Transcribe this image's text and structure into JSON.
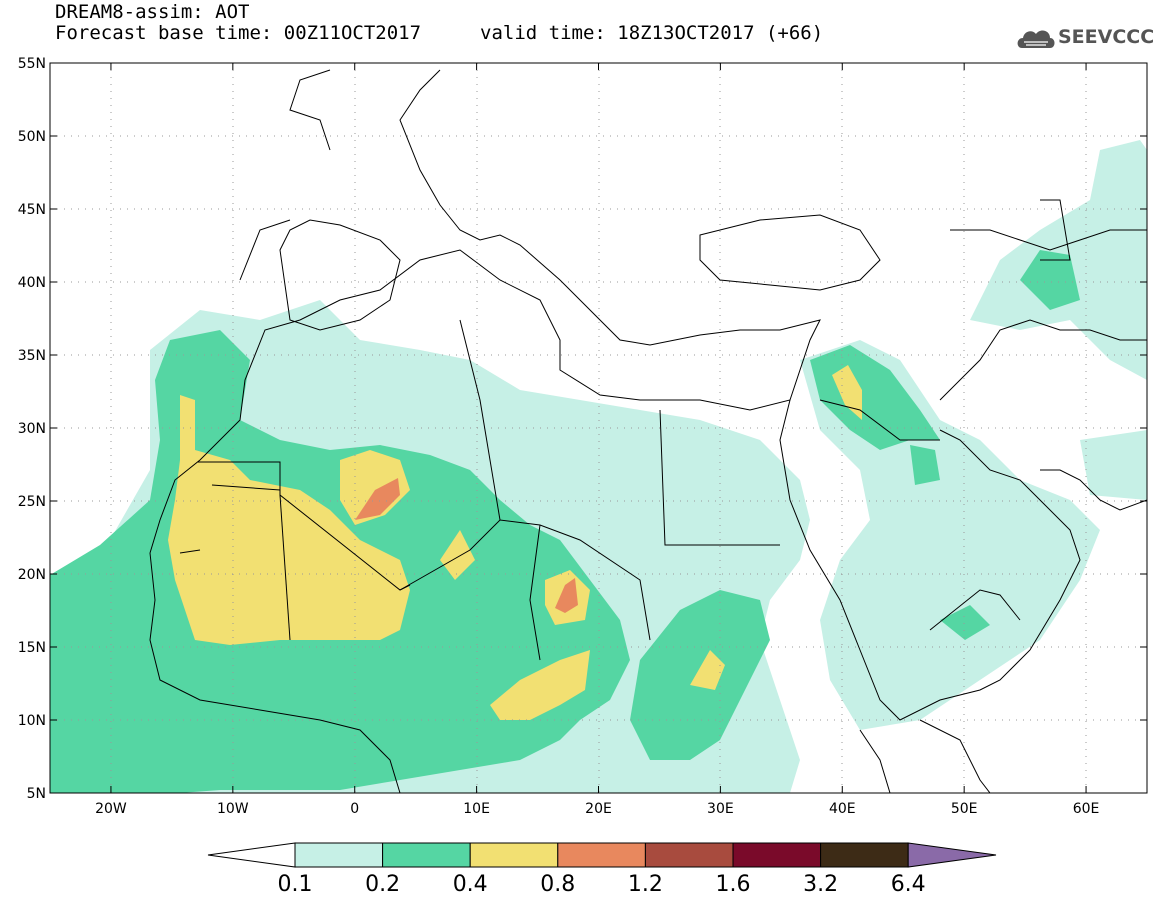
{
  "header": {
    "line1": "DREAM8-assim: AOT",
    "line2": "Forecast base time: 00Z11OCT2017",
    "valid": "valid time: 18Z13OCT2017 (+66)",
    "logo_text": "SEEVCCC",
    "logo_icon": "cloud-logo-icon"
  },
  "map": {
    "lon_range": [
      -25,
      65
    ],
    "lat_range": [
      5,
      55
    ],
    "lon_ticks": [
      {
        "value": -20,
        "label": "20W"
      },
      {
        "value": -10,
        "label": "10W"
      },
      {
        "value": 0,
        "label": "0"
      },
      {
        "value": 10,
        "label": "10E"
      },
      {
        "value": 20,
        "label": "20E"
      },
      {
        "value": 30,
        "label": "30E"
      },
      {
        "value": 40,
        "label": "40E"
      },
      {
        "value": 50,
        "label": "50E"
      },
      {
        "value": 60,
        "label": "60E"
      }
    ],
    "lat_ticks": [
      {
        "value": 55,
        "label": "55N"
      },
      {
        "value": 50,
        "label": "50N"
      },
      {
        "value": 45,
        "label": "45N"
      },
      {
        "value": 40,
        "label": "40N"
      },
      {
        "value": 35,
        "label": "35N"
      },
      {
        "value": 30,
        "label": "30N"
      },
      {
        "value": 25,
        "label": "25N"
      },
      {
        "value": 20,
        "label": "20N"
      },
      {
        "value": 15,
        "label": "15N"
      },
      {
        "value": 10,
        "label": "10N"
      },
      {
        "value": 5,
        "label": "5N"
      }
    ],
    "grid": "dotted"
  },
  "colorbar": {
    "labels": [
      "0.1",
      "0.2",
      "0.4",
      "0.8",
      "1.2",
      "1.6",
      "3.2",
      "6.4"
    ],
    "colors": [
      "#ffffff",
      "#c6f0e6",
      "#55d6a3",
      "#f2e072",
      "#e8885e",
      "#a84b3e",
      "#7a0a2a",
      "#3d2b16",
      "#8a6aa8"
    ]
  }
}
